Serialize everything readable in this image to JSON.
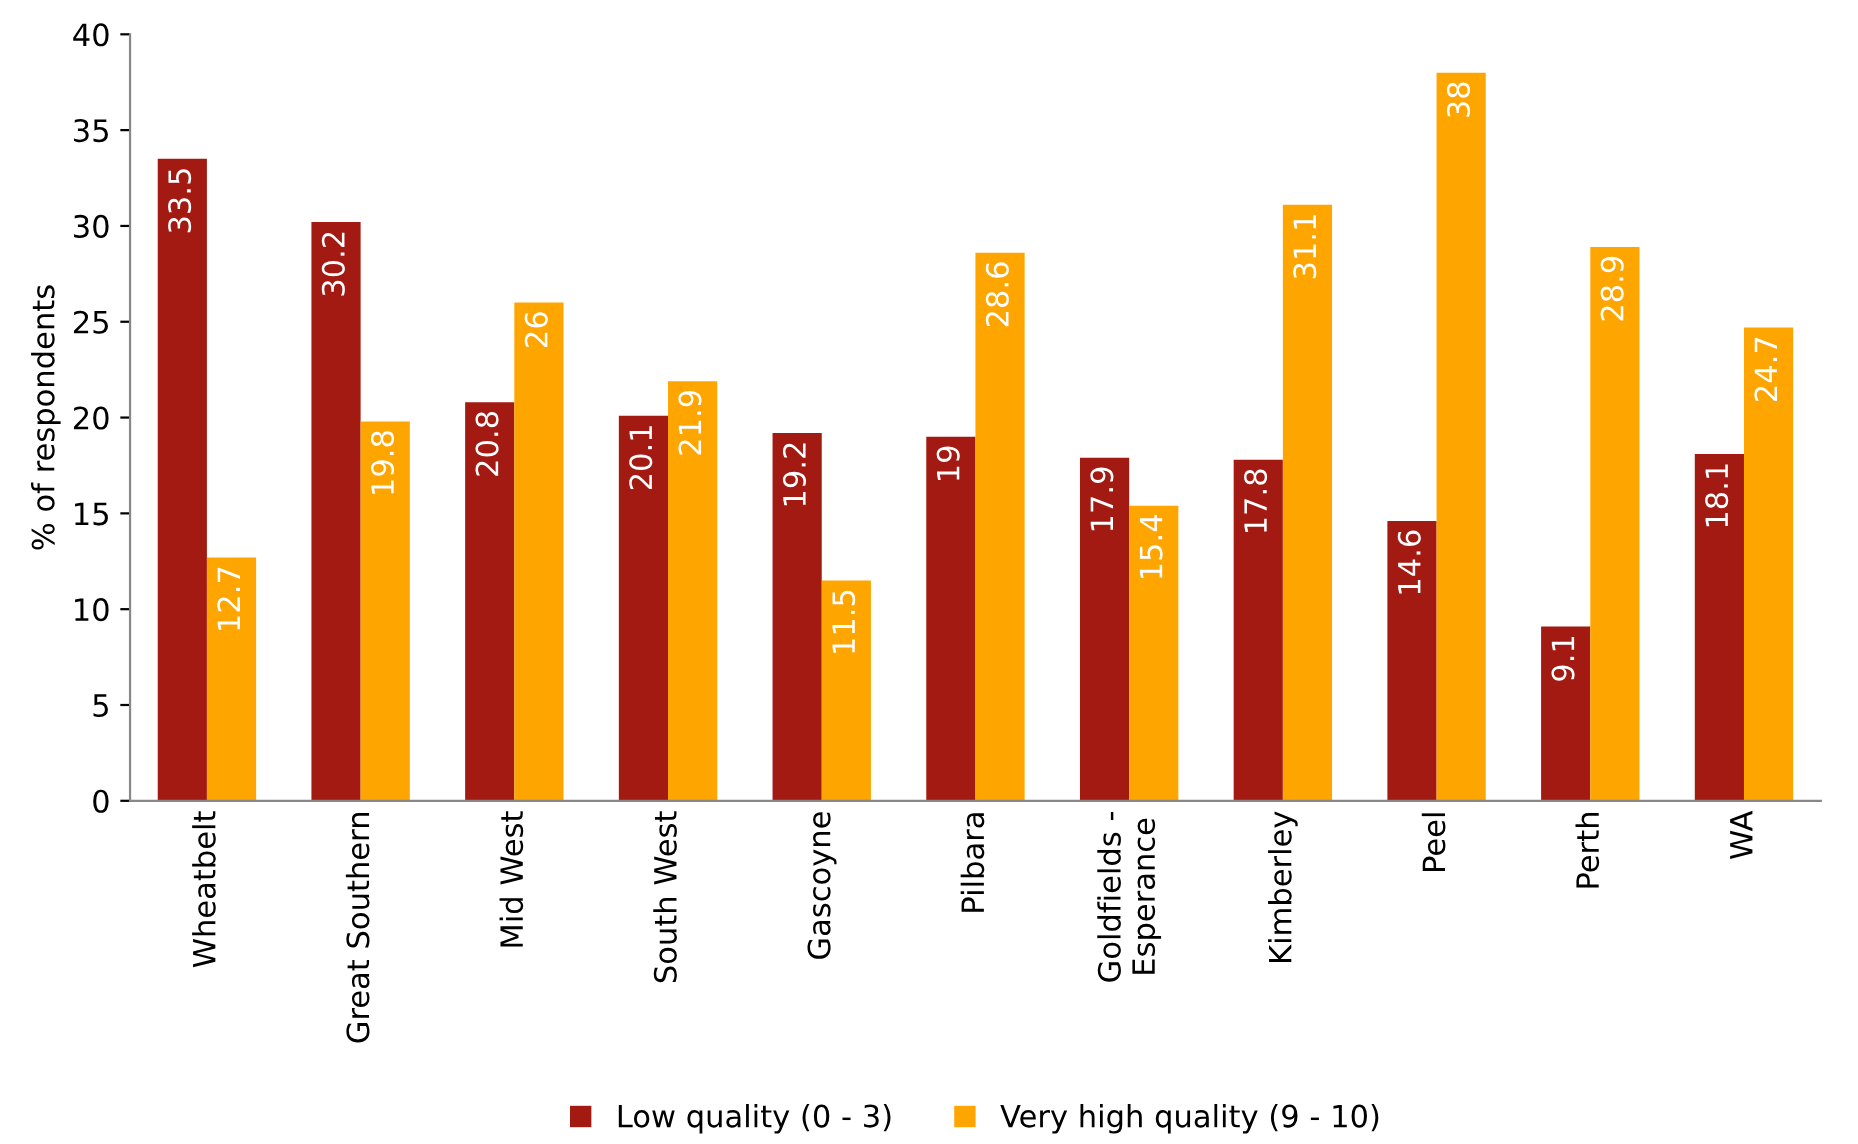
{
  "chart_data": {
    "type": "bar",
    "ylabel": "% of respondents",
    "categories": [
      "Wheatbelt",
      "Great Southern",
      "Mid West",
      "South West",
      "Gascoyne",
      "Pilbara",
      "Goldfields -\nEsperance",
      "Kimberley",
      "Peel",
      "Perth",
      "WA"
    ],
    "series": [
      {
        "name": "Low quality (0 - 3)",
        "color": "#a31a12",
        "values": [
          33.5,
          30.2,
          20.8,
          20.1,
          19.2,
          19,
          17.9,
          17.8,
          14.6,
          9.1,
          18.1
        ]
      },
      {
        "name": "Very high quality (9 - 10)",
        "color": "#ffa500",
        "values": [
          12.7,
          19.8,
          26,
          21.9,
          11.5,
          28.6,
          15.4,
          31.1,
          38,
          28.9,
          24.7
        ]
      }
    ],
    "ylim": [
      0,
      40
    ],
    "yticks": [
      0,
      5,
      10,
      15,
      20,
      25,
      30,
      35,
      40
    ],
    "data_labels": true,
    "legend": "bottom",
    "grid": false
  }
}
